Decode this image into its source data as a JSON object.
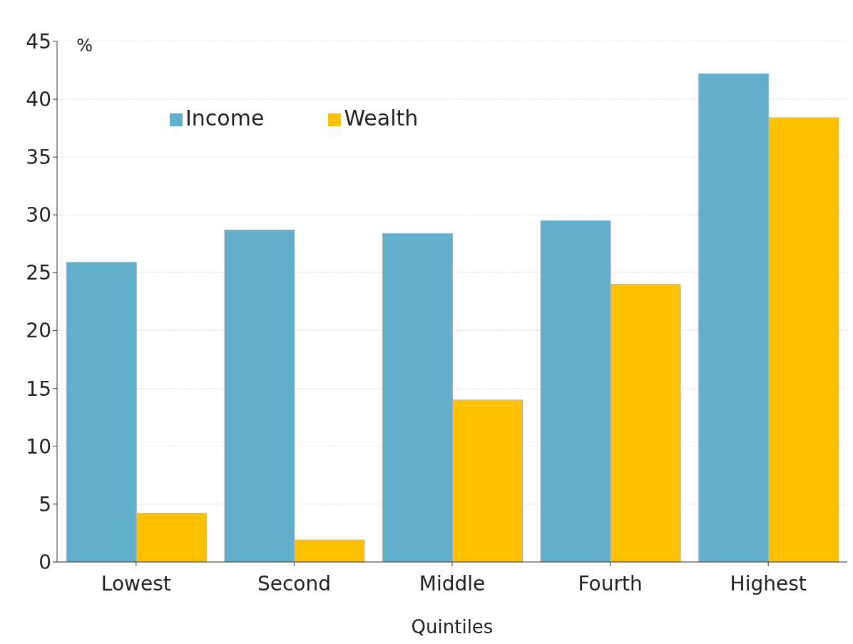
{
  "chart_data": {
    "type": "bar",
    "xlabel": "Quintiles",
    "ylabel": "%",
    "categories": [
      "Lowest",
      "Second",
      "Middle",
      "Fourth",
      "Highest"
    ],
    "series": [
      {
        "name": "Income",
        "color": "#62aecd",
        "values": [
          25.9,
          28.7,
          28.4,
          29.5,
          42.2
        ]
      },
      {
        "name": "Wealth",
        "color": "#ffc000",
        "values": [
          4.2,
          1.9,
          14.0,
          24.0,
          38.4
        ]
      }
    ],
    "ylim": [
      0,
      45
    ],
    "yticks": [
      0,
      5,
      10,
      15,
      20,
      25,
      30,
      35,
      40,
      45
    ],
    "grid": "y",
    "legend": "top left"
  }
}
